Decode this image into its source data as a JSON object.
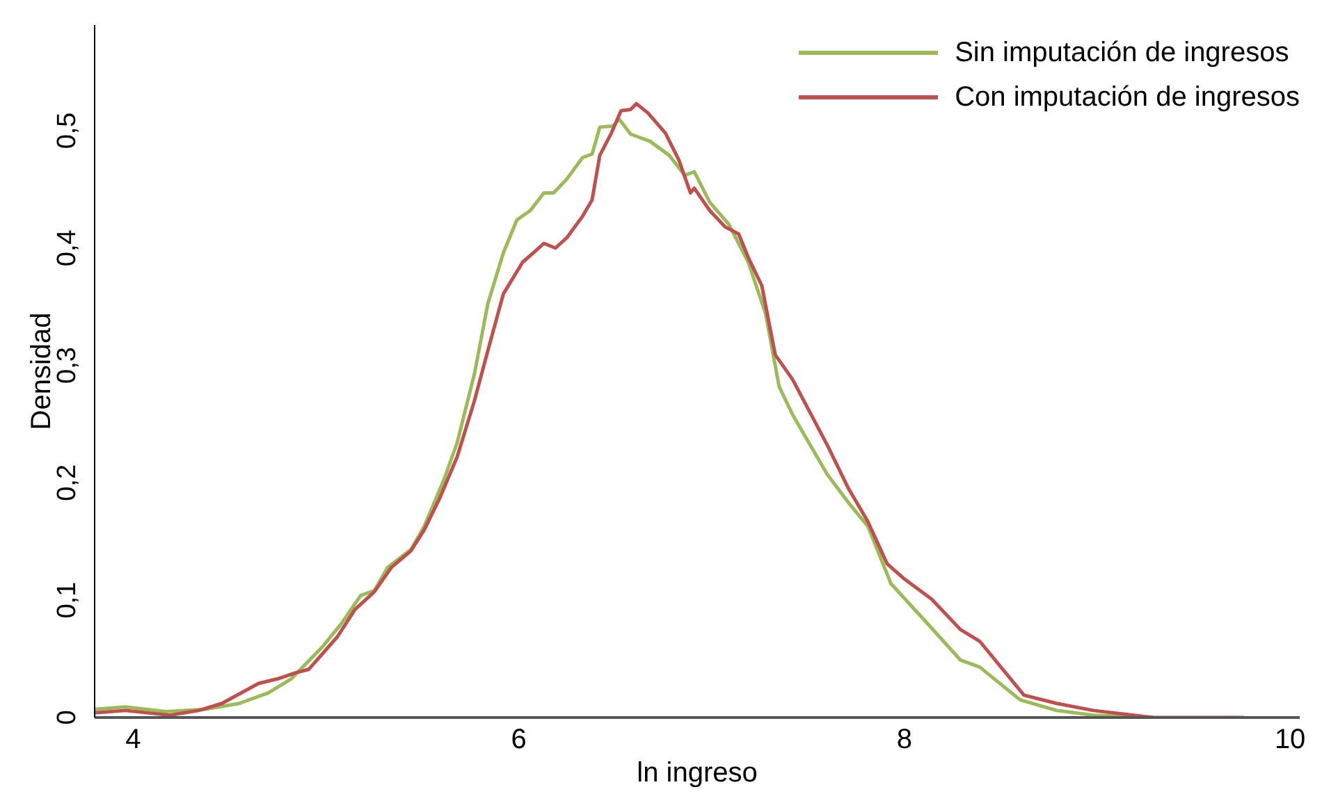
{
  "chart_data": {
    "type": "line",
    "xlabel": "ln ingreso",
    "ylabel": "Densidad",
    "xlim": [
      3.8,
      10.05
    ],
    "xticks": [
      4,
      6,
      8,
      10
    ],
    "ylim": [
      0,
      0.59
    ],
    "yticks": [
      {
        "value": 0,
        "label": "0"
      },
      {
        "value": 0.1,
        "label": "0,1"
      },
      {
        "value": 0.2,
        "label": "0,2"
      },
      {
        "value": 0.3,
        "label": "0,3"
      },
      {
        "value": 0.4,
        "label": "0,4"
      },
      {
        "value": 0.5,
        "label": "0,5"
      }
    ],
    "grid": false,
    "legend": "top right",
    "marker": "none",
    "line_style": "solid",
    "series": [
      {
        "name": "Sin imputación de ingresos",
        "color": "#9bbb59",
        "x": [
          3.8,
          3.96,
          4.17,
          4.37,
          4.55,
          4.7,
          4.82,
          4.98,
          5.08,
          5.18,
          5.25,
          5.32,
          5.44,
          5.51,
          5.61,
          5.68,
          5.77,
          5.84,
          5.92,
          5.99,
          6.06,
          6.13,
          6.18,
          6.25,
          6.33,
          6.38,
          6.42,
          6.49,
          6.52,
          6.58,
          6.68,
          6.78,
          6.86,
          6.91,
          6.99,
          7.09,
          7.19,
          7.28,
          7.35,
          7.42,
          7.6,
          7.71,
          7.81,
          7.93,
          8.12,
          8.29,
          8.39,
          8.6,
          8.79,
          8.98,
          9.29
        ],
        "values": [
          0.007,
          0.009,
          0.005,
          0.007,
          0.012,
          0.021,
          0.033,
          0.06,
          0.08,
          0.104,
          0.108,
          0.128,
          0.143,
          0.163,
          0.202,
          0.234,
          0.293,
          0.353,
          0.396,
          0.424,
          0.432,
          0.447,
          0.447,
          0.459,
          0.477,
          0.48,
          0.503,
          0.504,
          0.51,
          0.497,
          0.491,
          0.479,
          0.462,
          0.465,
          0.439,
          0.42,
          0.388,
          0.344,
          0.282,
          0.258,
          0.207,
          0.183,
          0.163,
          0.114,
          0.08,
          0.049,
          0.043,
          0.015,
          0.006,
          0.002,
          0
        ]
      },
      {
        "name": "Con imputación de ingresos",
        "color": "#c0504d",
        "x": [
          3.8,
          3.96,
          4.19,
          4.34,
          4.46,
          4.65,
          4.75,
          4.84,
          4.91,
          5.06,
          5.15,
          5.25,
          5.34,
          5.44,
          5.51,
          5.59,
          5.68,
          5.77,
          5.84,
          5.92,
          6.02,
          6.09,
          6.13,
          6.19,
          6.25,
          6.33,
          6.38,
          6.42,
          6.48,
          6.53,
          6.58,
          6.61,
          6.67,
          6.76,
          6.83,
          6.89,
          6.91,
          6.99,
          7.07,
          7.14,
          7.19,
          7.26,
          7.33,
          7.42,
          7.6,
          7.71,
          7.81,
          7.91,
          8.0,
          8.14,
          8.29,
          8.39,
          8.62,
          8.79,
          8.98,
          9.29,
          9.76
        ],
        "values": [
          0.004,
          0.006,
          0.002,
          0.006,
          0.012,
          0.029,
          0.033,
          0.038,
          0.041,
          0.069,
          0.092,
          0.107,
          0.128,
          0.142,
          0.16,
          0.187,
          0.222,
          0.27,
          0.313,
          0.361,
          0.388,
          0.398,
          0.404,
          0.4,
          0.409,
          0.427,
          0.441,
          0.479,
          0.498,
          0.517,
          0.518,
          0.523,
          0.515,
          0.498,
          0.475,
          0.447,
          0.451,
          0.432,
          0.418,
          0.412,
          0.392,
          0.368,
          0.309,
          0.288,
          0.232,
          0.195,
          0.167,
          0.131,
          0.118,
          0.101,
          0.075,
          0.065,
          0.019,
          0.012,
          0.006,
          0,
          0
        ]
      }
    ]
  }
}
